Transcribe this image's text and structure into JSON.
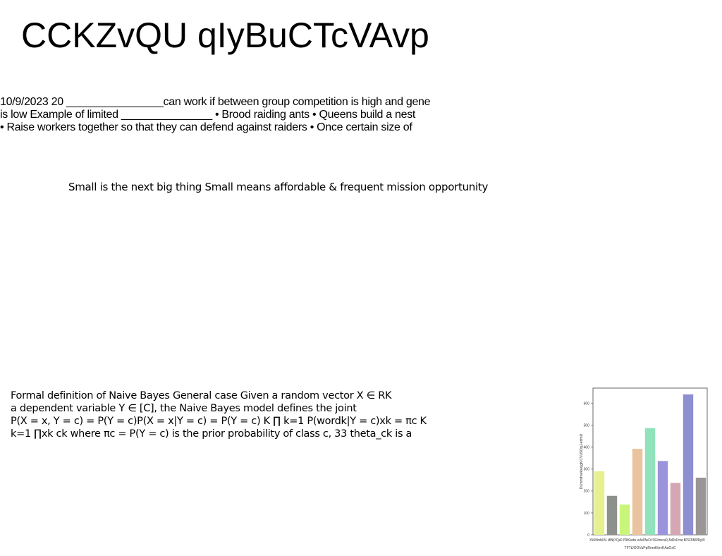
{
  "title": "CCKZvQU qIyBuCTcVAvp",
  "block_a": {
    "lines": [
      "10/9/2023 20 ________________can work if between group competition is high and gene",
      "is low Example of limited _______________ • Brood raiding ants • Queens build a nest",
      "• Raise workers together so that they can defend against raiders • Once certain size of"
    ]
  },
  "block_b": {
    "text": "Small is the next big thing Small means affordable & frequent mission opportunity"
  },
  "block_c": {
    "lines": [
      "Formal definition of Naive Bayes General case Given a random vector X ∈ RK",
      "a dependent variable Y ∈ [C], the Naive Bayes model defines the joint",
      "P(X = x, Y = c) = P(Y = c)P(X = x|Y = c) = P(Y = c) K ∏ k=1 P(wordk|Y = c)xk = πc K",
      "k=1 ∏xk ck where πc = P(Y = c) is the prior probability of class c, 33 theta_ck is a"
    ]
  },
  "chart_data": {
    "type": "bar",
    "categories": [
      "XNUMmhiLBL",
      "kBNjtYCjeR",
      "PRtKkwbu",
      "veAvPAeCd",
      "SSJdnwcaDj",
      "NdReFrmw",
      "BPSFBMWRgVK",
      "TFTtJOOVuPpRnmKkrvKAaOxC"
    ],
    "values": [
      290,
      178,
      138,
      393,
      487,
      337,
      237,
      641
    ],
    "extra_bar": 261,
    "xlabel_lines": [
      "XNUMmhiLBL kBNjtYCjeR PRtKkwbu veAvPAeCd SSJdnwcaDj NdReFrmw BPSFBMWRgVK",
      "TFTtJOOVuPpRnmKkrvKAaOxC"
    ],
    "ylabel": "DLmmdvwkxwjgKiCVUSDqJ-edmU",
    "yticks": [
      0,
      100,
      200,
      300,
      400,
      500,
      600
    ],
    "ylim": [
      0,
      670
    ],
    "colors": [
      "#e5f08f",
      "#8d918c",
      "#c9f57a",
      "#eac49f",
      "#90e2bb",
      "#9b93dc",
      "#d5a6b3",
      "#8d8fd0",
      "#9b9695"
    ],
    "grid": false
  }
}
